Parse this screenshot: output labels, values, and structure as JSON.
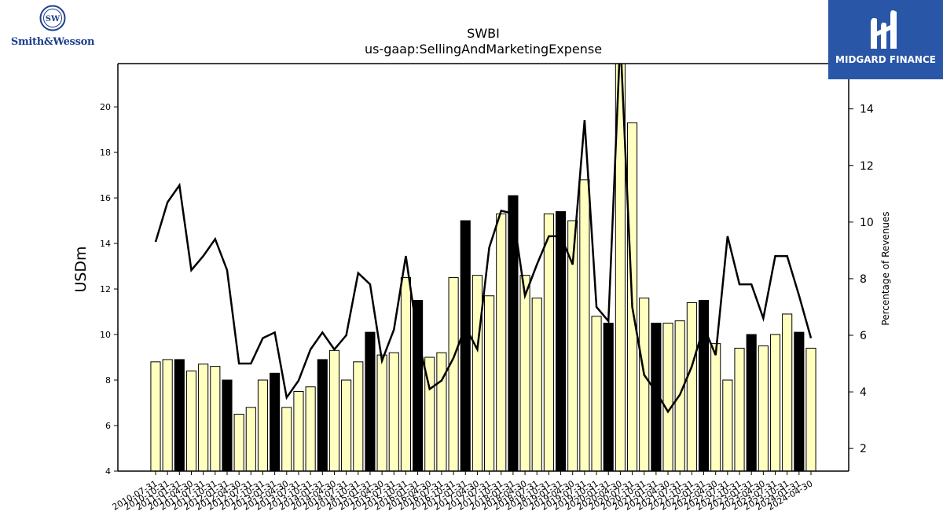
{
  "logos": {
    "left_brand": "Smith&Wesson",
    "right_brand": "MIDGARD FINANCE",
    "brand_blue": "#1c3f8c",
    "badge_blue": "#2a56a8"
  },
  "chart_data": {
    "type": "bar",
    "title": "SWBI",
    "subtitle": "us-gaap:SellingAndMarketingExpense",
    "ylabel": "USDm",
    "y2label": "Percentage of Revenues",
    "ylim": [
      4,
      21.9
    ],
    "y2lim": [
      1.2,
      15.6
    ],
    "yticks": [
      4,
      6,
      8,
      10,
      12,
      14,
      16,
      18,
      20
    ],
    "y2ticks": [
      2,
      4,
      6,
      8,
      10,
      12,
      14
    ],
    "grid": false,
    "bar_colors": {
      "quarter": "#ffffc0",
      "fiscal_year_end": "#000000",
      "edge": "#000000"
    },
    "line_color": "#000000",
    "categories": [
      "2010-07-31",
      "2010-10-31",
      "2011-01-31",
      "2011-04-30",
      "2011-07-31",
      "2011-10-31",
      "2012-01-31",
      "2012-04-30",
      "2012-07-31",
      "2012-10-31",
      "2013-01-31",
      "2013-04-30",
      "2013-07-31",
      "2013-10-31",
      "2014-01-31",
      "2014-04-30",
      "2014-07-31",
      "2014-10-31",
      "2015-01-31",
      "2015-04-30",
      "2015-07-31",
      "2015-10-31",
      "2016-01-31",
      "2016-04-30",
      "2016-07-31",
      "2016-10-31",
      "2017-01-31",
      "2017-04-30",
      "2017-07-31",
      "2017-10-31",
      "2018-01-31",
      "2018-04-30",
      "2018-07-31",
      "2018-10-31",
      "2019-01-31",
      "2019-04-30",
      "2019-07-31",
      "2019-10-31",
      "2020-01-31",
      "2020-04-30",
      "2020-07-31",
      "2020-10-31",
      "2021-01-31",
      "2021-04-30",
      "2021-07-31",
      "2021-10-31",
      "2022-01-31",
      "2022-04-30",
      "2022-07-31",
      "2022-10-31",
      "2023-01-31",
      "2023-04-30",
      "2023-07-31",
      "2023-10-31",
      "2024-01-31",
      "2024-04-30"
    ],
    "series": [
      {
        "values": [
          8.8,
          8.9,
          8.9,
          8.4,
          8.7,
          8.6,
          8.0,
          6.5,
          6.8,
          8.0,
          8.3,
          6.8,
          7.5,
          7.7,
          8.9,
          9.3,
          8.0,
          8.8,
          10.1,
          9.1,
          9.2,
          12.5,
          11.5,
          9.0,
          9.2,
          12.5,
          15.0,
          12.6,
          11.7,
          15.3,
          16.1,
          12.6,
          11.6,
          15.3,
          15.4,
          15.0,
          16.8,
          10.8,
          10.5,
          22.0,
          19.3,
          11.6,
          10.5,
          10.5,
          10.6,
          11.4,
          11.5,
          9.6,
          8.0,
          9.4,
          10.0,
          9.5,
          10.0,
          10.9,
          10.1,
          9.4
        ],
        "fiscal_year_end": [
          false,
          false,
          true,
          false,
          false,
          false,
          true,
          false,
          false,
          false,
          true,
          false,
          false,
          false,
          true,
          false,
          false,
          false,
          true,
          false,
          false,
          false,
          true,
          false,
          false,
          false,
          true,
          false,
          false,
          false,
          true,
          false,
          false,
          false,
          true,
          false,
          false,
          false,
          true,
          false,
          false,
          false,
          true,
          false,
          false,
          false,
          true,
          false,
          false,
          false,
          true,
          false,
          false,
          false,
          true,
          false
        ]
      },
      {
        "name": "Percentage of Revenues",
        "axis": "right",
        "values": [
          9.3,
          10.7,
          11.3,
          8.3,
          8.8,
          9.4,
          8.3,
          5.0,
          5.0,
          5.9,
          6.1,
          3.8,
          4.4,
          5.5,
          6.1,
          5.5,
          6.0,
          8.2,
          7.8,
          5.1,
          6.2,
          8.8,
          5.9,
          4.1,
          4.4,
          5.2,
          6.3,
          5.5,
          9.1,
          10.4,
          10.3,
          7.4,
          8.5,
          9.5,
          9.5,
          8.5,
          13.6,
          7.0,
          6.5,
          16.5,
          7.0,
          4.6,
          4.0,
          3.3,
          3.9,
          4.9,
          6.3,
          5.3,
          9.5,
          7.8,
          7.8,
          6.6,
          8.8,
          8.8,
          7.4,
          5.9
        ]
      }
    ]
  }
}
